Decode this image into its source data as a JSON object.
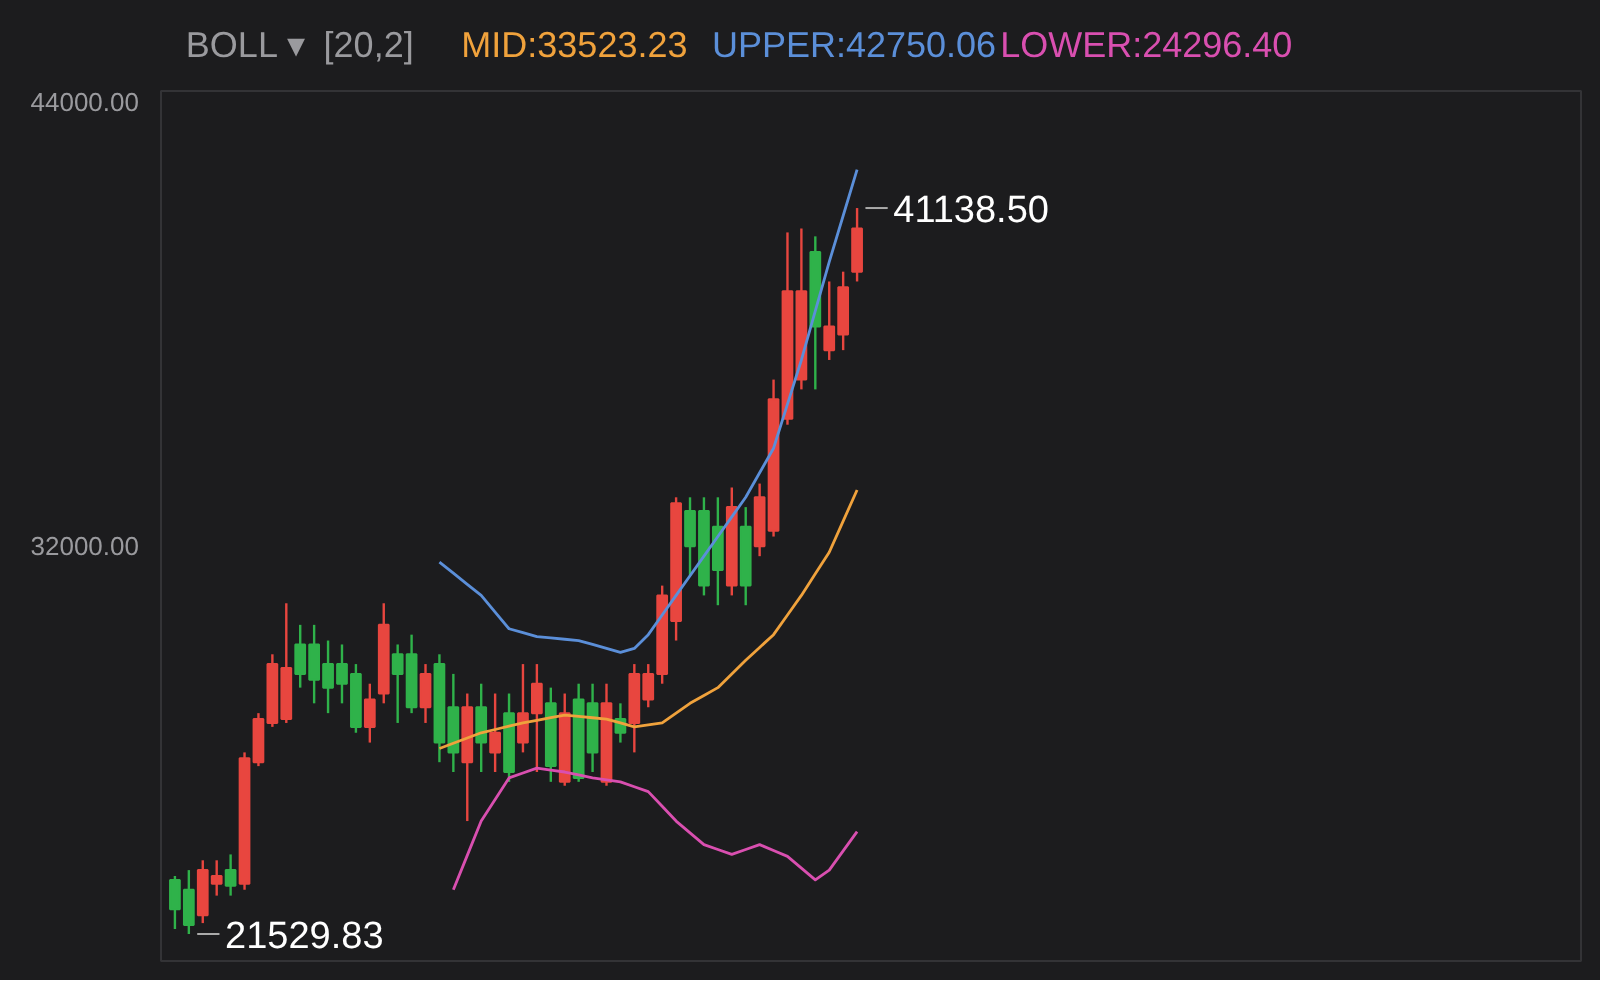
{
  "chart_data": {
    "type": "candlestick",
    "categories": [
      null,
      null,
      null,
      null,
      null,
      null,
      null,
      null,
      null,
      null,
      null,
      null,
      null,
      null,
      null,
      null,
      null,
      null,
      null,
      null,
      null,
      null,
      null,
      null,
      null,
      null,
      null,
      null,
      null,
      null,
      null,
      null,
      null,
      null,
      null,
      null,
      null,
      null,
      null,
      null,
      null,
      null,
      null,
      null,
      null,
      null,
      null,
      null,
      null,
      null
    ],
    "ohlc": [
      [
        22990,
        23096,
        21665,
        22195
      ],
      [
        22725,
        23255,
        21529.83,
        21771
      ],
      [
        22036,
        23520,
        21824,
        23255
      ],
      [
        22884,
        23520,
        22566,
        23096
      ],
      [
        23255,
        23679,
        22566,
        22831
      ],
      [
        22884,
        26435,
        22725,
        26276
      ],
      [
        26170,
        27495,
        26064,
        27336
      ],
      [
        27230,
        29085,
        27124,
        28820
      ],
      [
        27336,
        30463,
        27230,
        28714
      ],
      [
        29350,
        29880,
        28184,
        28555
      ],
      [
        29350,
        29880,
        27760,
        28396
      ],
      [
        28820,
        29456,
        27495,
        28184
      ],
      [
        28820,
        29350,
        27760,
        28290
      ],
      [
        28555,
        28820,
        26965,
        27124
      ],
      [
        27124,
        28290,
        26700,
        27866
      ],
      [
        28025,
        30463,
        27760,
        29880
      ],
      [
        29085,
        29350,
        27230,
        28555
      ],
      [
        29085,
        29615,
        27495,
        27654
      ],
      [
        27654,
        28820,
        27230,
        28555
      ],
      [
        28820,
        29085,
        26170,
        26700
      ],
      [
        27654,
        28555,
        25905,
        26435
      ],
      [
        26170,
        28025,
        24580,
        27654
      ],
      [
        27654,
        28290,
        25905,
        26700
      ],
      [
        26435,
        28025,
        25905,
        26965
      ],
      [
        27495,
        28025,
        25640,
        25905
      ],
      [
        26700,
        28820,
        26435,
        27495
      ],
      [
        27495,
        28820,
        25905,
        28290
      ],
      [
        27760,
        28184,
        25640,
        26064
      ],
      [
        25640,
        28025,
        25534,
        27495
      ],
      [
        27866,
        28290,
        25640,
        25746
      ],
      [
        27760,
        28290,
        25905,
        26435
      ],
      [
        25640,
        28290,
        25534,
        27760
      ],
      [
        27336,
        27760,
        26700,
        26965
      ],
      [
        27230,
        28820,
        26435,
        28555
      ],
      [
        27866,
        28820,
        27654,
        28555
      ],
      [
        28555,
        30940,
        28290,
        30675
      ],
      [
        29986,
        33325,
        29456,
        33166
      ],
      [
        32954,
        33325,
        31205,
        32000
      ],
      [
        32954,
        33325,
        30675,
        30940
      ],
      [
        32530,
        33325,
        30410,
        31364
      ],
      [
        30940,
        33590,
        30675,
        33060
      ],
      [
        32530,
        33060,
        30410,
        30940
      ],
      [
        32000,
        33696,
        31735,
        33325
      ],
      [
        32424,
        36505,
        32265,
        35975
      ],
      [
        35445,
        40480,
        35286,
        38890
      ],
      [
        36505,
        40586,
        36240,
        38890
      ],
      [
        39950,
        40374,
        36240,
        37936
      ],
      [
        37300,
        39155,
        37035,
        37936
      ],
      [
        37724,
        39420,
        37300,
        39000
      ],
      [
        39420,
        41138.5,
        39155,
        40586
      ]
    ],
    "colors": [
      "#2fb24a",
      "#2fb24a",
      "#e8463f",
      "#e8463f",
      "#2fb24a",
      "#e8463f",
      "#e8463f",
      "#e8463f",
      "#e8463f",
      "#2fb24a",
      "#2fb24a",
      "#2fb24a",
      "#2fb24a",
      "#2fb24a",
      "#e8463f",
      "#e8463f",
      "#2fb24a",
      "#2fb24a",
      "#e8463f",
      "#2fb24a",
      "#2fb24a",
      "#e8463f",
      "#2fb24a",
      "#e8463f",
      "#2fb24a",
      "#e8463f",
      "#e8463f",
      "#2fb24a",
      "#e8463f",
      "#2fb24a",
      "#2fb24a",
      "#e8463f",
      "#2fb24a",
      "#e8463f",
      "#e8463f",
      "#e8463f",
      "#e8463f",
      "#2fb24a",
      "#2fb24a",
      "#2fb24a",
      "#e8463f",
      "#2fb24a",
      "#e8463f",
      "#e8463f",
      "#e8463f",
      "#e8463f",
      "#2fb24a",
      "#e8463f",
      "#e8463f",
      "#e8463f"
    ],
    "series": [
      {
        "name": "MID:33523.23",
        "type": "line",
        "color": "#f0a23c",
        "values": [
          null,
          null,
          null,
          null,
          null,
          null,
          null,
          null,
          null,
          null,
          null,
          null,
          null,
          null,
          null,
          null,
          null,
          null,
          null,
          26540,
          26682,
          26823,
          26965,
          27053,
          27142,
          27230,
          27301,
          27371,
          27442,
          27407,
          27371,
          27336,
          27230,
          27124,
          27177,
          27230,
          27495,
          27760,
          27972,
          28184,
          28555,
          28926,
          29270,
          29615,
          30145,
          30675,
          31258,
          31841,
          32682,
          33523.23
        ]
      },
      {
        "name": "UPPER:42750.06",
        "type": "line",
        "color": "#5b8fd9",
        "values": [
          null,
          null,
          null,
          null,
          null,
          null,
          null,
          null,
          null,
          null,
          null,
          null,
          null,
          null,
          null,
          null,
          null,
          null,
          null,
          31576,
          31276,
          30975,
          30675,
          30225,
          29774,
          29668,
          29562,
          29527,
          29491,
          29456,
          29350,
          29244,
          29138,
          29244,
          29615,
          30145,
          30675,
          31205,
          31735,
          32265,
          32795,
          33325,
          33988,
          34650,
          35843,
          37035,
          38360,
          39685,
          40930,
          42176
        ]
      },
      {
        "name": "LOWER:24296.40",
        "type": "line",
        "color": "#d94fb0",
        "values": [
          null,
          null,
          null,
          null,
          null,
          null,
          null,
          null,
          null,
          null,
          null,
          null,
          null,
          null,
          null,
          null,
          null,
          null,
          null,
          null,
          22725,
          23653,
          24580,
          25163,
          25746,
          25879,
          26011,
          25958,
          25905,
          25826,
          25746,
          25693,
          25640,
          25508,
          25375,
          24978,
          24580,
          24262,
          23944,
          23812,
          23679,
          23812,
          23944,
          23785,
          23626,
          23308,
          22990,
          23255,
          23776,
          24296.4
        ]
      }
    ],
    "ylim": [
      20800,
      44300
    ],
    "yticks": [
      {
        "value": 44000,
        "label": "44000.00"
      },
      {
        "value": 32000,
        "label": "32000.00"
      }
    ],
    "tick_labels": "y",
    "grid": false,
    "annotations": [
      "BOLL ▾",
      "[20,2]",
      "41138.50",
      "21529.83"
    ]
  }
}
